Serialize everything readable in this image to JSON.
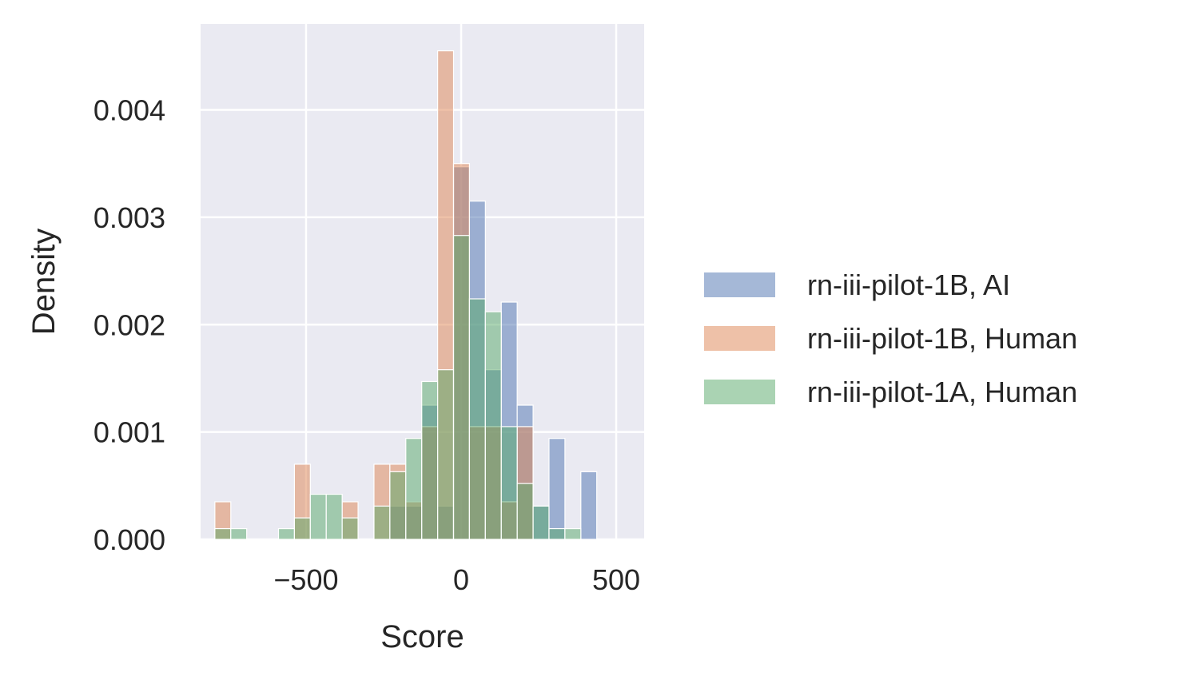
{
  "chart_data": {
    "type": "bar",
    "subtype": "histogram",
    "xlabel": "Score",
    "ylabel": "Density",
    "xlim": [
      -840,
      590
    ],
    "ylim": [
      0,
      0.0048
    ],
    "xticks": [
      -500,
      0,
      500
    ],
    "xtick_labels": [
      "−500",
      "0",
      "500"
    ],
    "yticks": [
      0,
      0.001,
      0.002,
      0.003,
      0.004
    ],
    "ytick_labels": [
      "0.000",
      "0.001",
      "0.002",
      "0.003",
      "0.004"
    ],
    "grid": true,
    "legend_position": "center-right, outside plot",
    "bin_start": -794,
    "bin_width": 51.3,
    "colors": {
      "background": "#eaeaf2",
      "grid": "#ffffff",
      "text": "#262626"
    },
    "series": [
      {
        "name": "rn-iii-pilot-1B, AI",
        "color": "#4c72b0",
        "opacity": 0.5,
        "values": [
          0,
          0,
          0,
          0,
          0,
          0,
          0,
          0,
          0,
          0,
          0,
          0.00031,
          0.00031,
          0.00125,
          0.00031,
          0.00347,
          0.00315,
          0.00158,
          0.00221,
          0.00125,
          0.00031,
          0.00094,
          0,
          0.00063
        ]
      },
      {
        "name": "rn-iii-pilot-1B, Human",
        "color": "#dd8452",
        "opacity": 0.5,
        "values": [
          0.00035,
          0,
          0,
          0,
          0,
          0.0007,
          0,
          0,
          0.00035,
          0,
          0.0007,
          0.0007,
          0.00035,
          0.00105,
          0.00455,
          0.0035,
          0.00105,
          0.00105,
          0.00035,
          0.00105,
          0,
          0,
          0,
          0
        ]
      },
      {
        "name": "rn-iii-pilot-1A, Human",
        "color": "#55a868",
        "opacity": 0.5,
        "values": [
          0.0001,
          0.0001,
          0,
          0,
          0.0001,
          0.0002,
          0.00042,
          0.00042,
          0.0002,
          0,
          0.00031,
          0.00063,
          0.00094,
          0.00147,
          0.00158,
          0.00283,
          0.00224,
          0.00212,
          0.00105,
          0.00052,
          0.00031,
          0.0001,
          0.0001,
          0
        ]
      }
    ]
  }
}
